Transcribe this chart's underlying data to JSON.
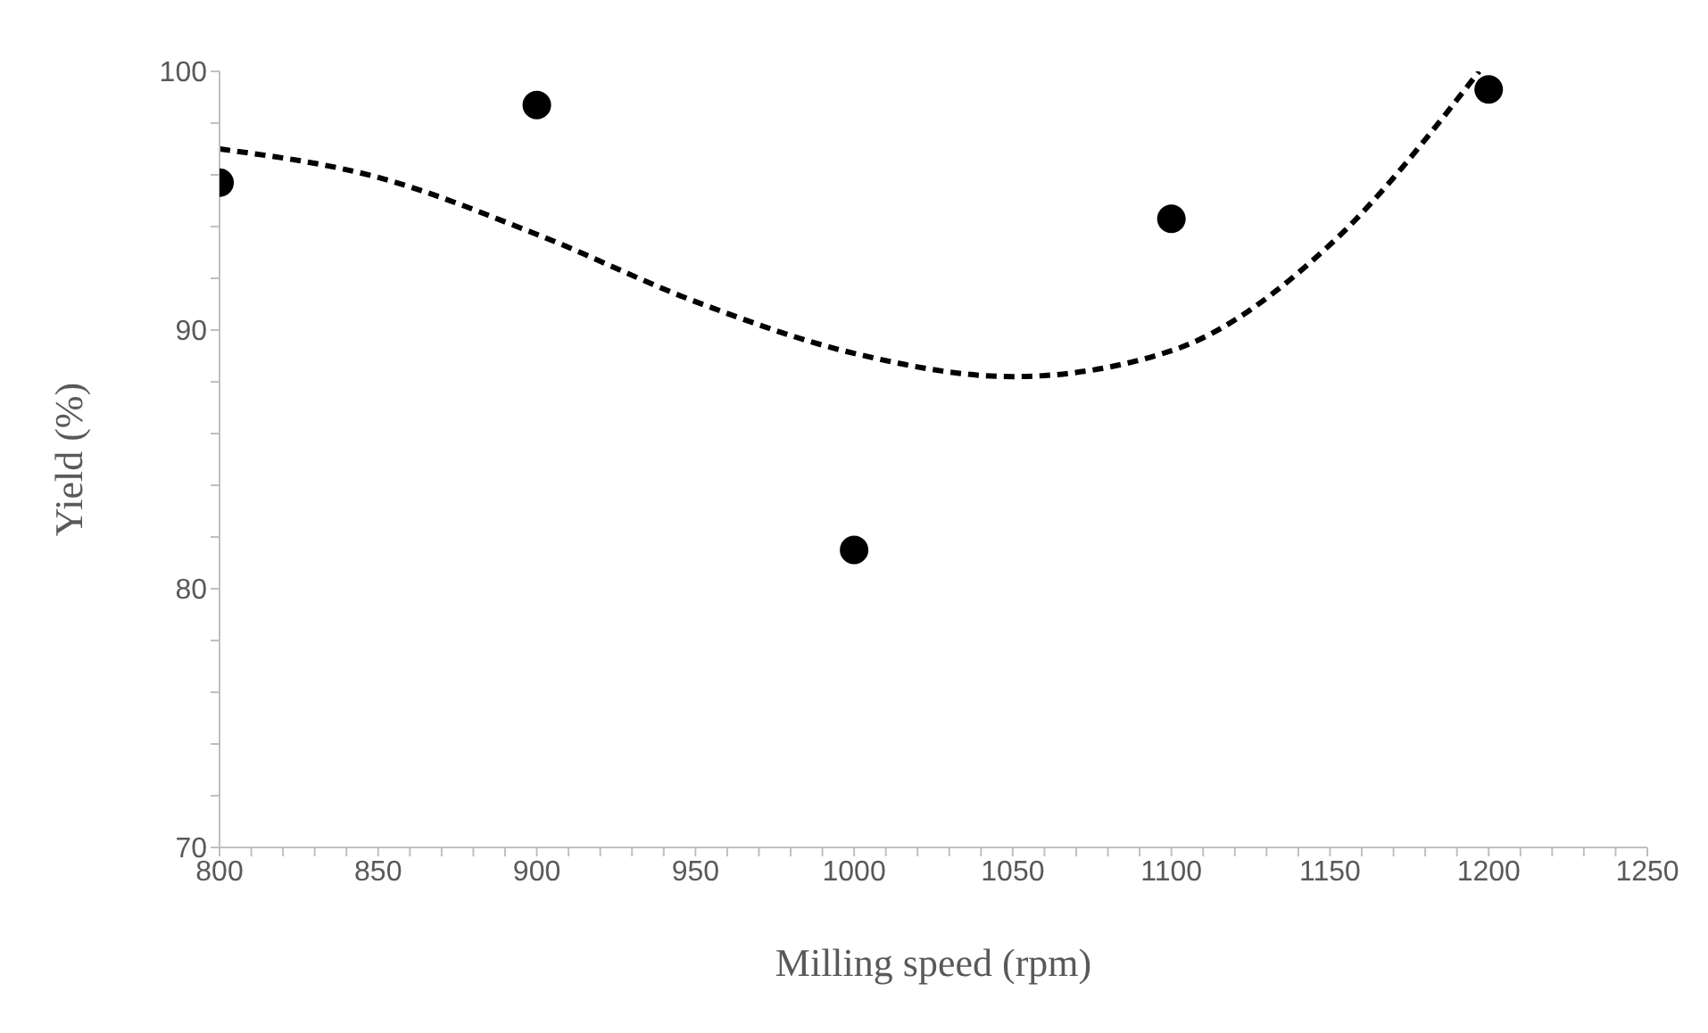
{
  "chart_data": {
    "type": "scatter",
    "xlabel": "Milling speed (rpm)",
    "ylabel": "Yield (%)",
    "xlim": [
      800,
      1250
    ],
    "ylim": [
      70,
      100
    ],
    "xticks": [
      800,
      {
        "value": 810,
        "label": null
      },
      {
        "value": 820,
        "label": null
      },
      {
        "value": 830,
        "label": null
      },
      {
        "value": 840,
        "label": null
      },
      850,
      {
        "value": 860,
        "label": null
      },
      {
        "value": 870,
        "label": null
      },
      {
        "value": 880,
        "label": null
      },
      {
        "value": 890,
        "label": null
      },
      900,
      {
        "value": 910,
        "label": null
      },
      {
        "value": 920,
        "label": null
      },
      {
        "value": 930,
        "label": null
      },
      {
        "value": 940,
        "label": null
      },
      950,
      {
        "value": 960,
        "label": null
      },
      {
        "value": 970,
        "label": null
      },
      {
        "value": 980,
        "label": null
      },
      {
        "value": 990,
        "label": null
      },
      1000,
      {
        "value": 1010,
        "label": null
      },
      {
        "value": 1020,
        "label": null
      },
      {
        "value": 1030,
        "label": null
      },
      {
        "value": 1040,
        "label": null
      },
      1050,
      {
        "value": 1060,
        "label": null
      },
      {
        "value": 1070,
        "label": null
      },
      {
        "value": 1080,
        "label": null
      },
      {
        "value": 1090,
        "label": null
      },
      1100,
      {
        "value": 1110,
        "label": null
      },
      {
        "value": 1120,
        "label": null
      },
      {
        "value": 1130,
        "label": null
      },
      {
        "value": 1140,
        "label": null
      },
      1150,
      {
        "value": 1160,
        "label": null
      },
      {
        "value": 1170,
        "label": null
      },
      {
        "value": 1180,
        "label": null
      },
      {
        "value": 1190,
        "label": null
      },
      1200,
      {
        "value": 1210,
        "label": null
      },
      {
        "value": 1220,
        "label": null
      },
      {
        "value": 1230,
        "label": null
      },
      {
        "value": 1240,
        "label": null
      },
      1250
    ],
    "yticks": [
      70,
      {
        "value": 72,
        "label": null
      },
      {
        "value": 74,
        "label": null
      },
      {
        "value": 76,
        "label": null
      },
      {
        "value": 78,
        "label": null
      },
      80,
      {
        "value": 82,
        "label": null
      },
      {
        "value": 84,
        "label": null
      },
      {
        "value": 86,
        "label": null
      },
      {
        "value": 88,
        "label": null
      },
      90,
      {
        "value": 92,
        "label": null
      },
      {
        "value": 94,
        "label": null
      },
      {
        "value": 96,
        "label": null
      },
      {
        "value": 98,
        "label": null
      },
      100
    ],
    "grid": false,
    "legend": false,
    "series": [
      {
        "color": "#000000",
        "marker": "circle",
        "x": [
          800,
          900,
          1000,
          1100,
          1200
        ],
        "values": [
          95.7,
          98.7,
          81.5,
          94.3,
          99.3
        ]
      },
      {
        "type": "line",
        "color": "#000000",
        "line_style": "dashed",
        "marker": "none",
        "x": [
          800,
          850,
          900,
          950,
          1000,
          1050,
          1100,
          1150,
          1197
        ],
        "values": [
          97.0,
          95.9,
          93.7,
          91.1,
          89.1,
          88.2,
          89.2,
          93.3,
          100
        ]
      }
    ]
  }
}
